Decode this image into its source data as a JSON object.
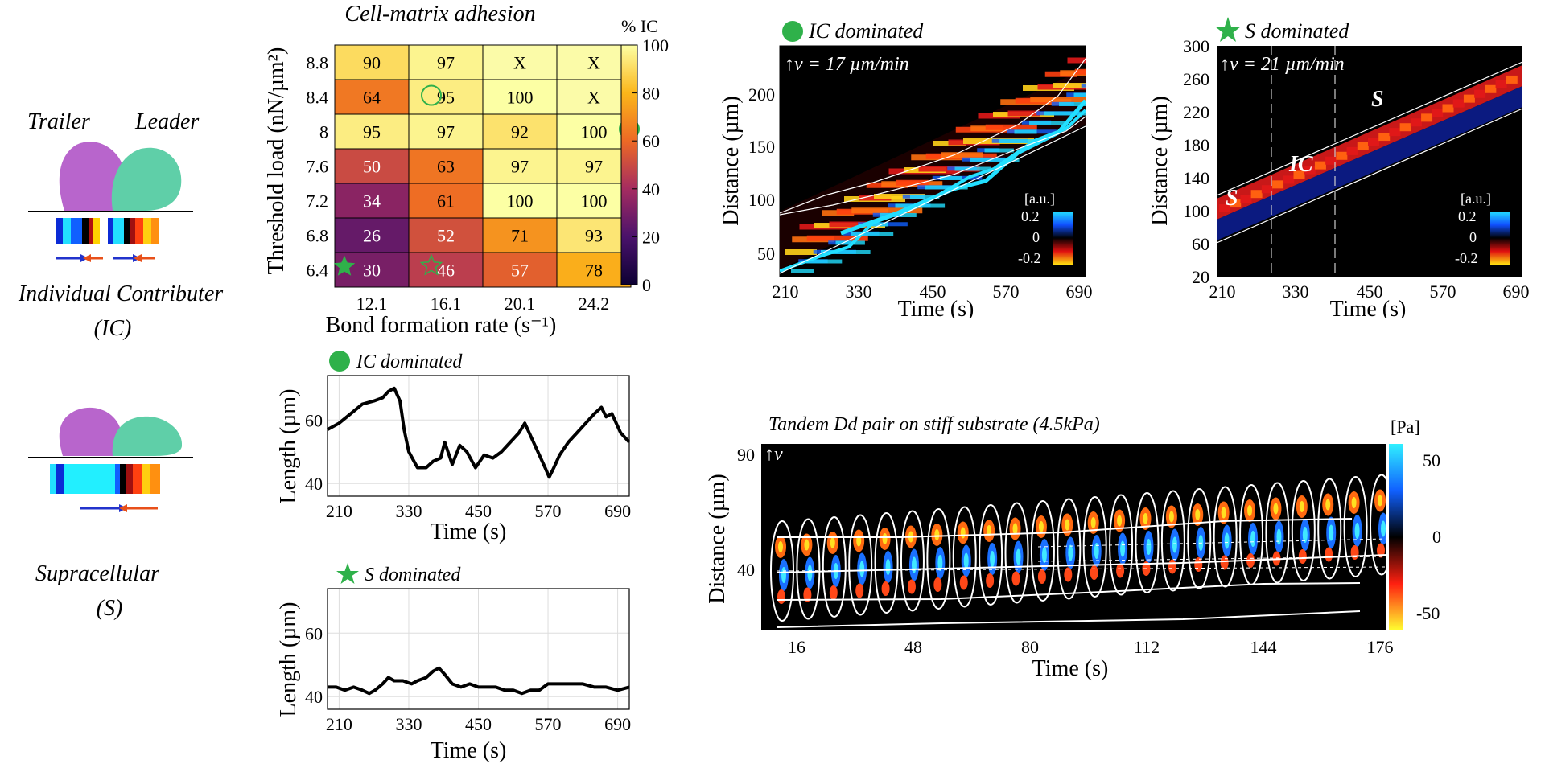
{
  "schematic": {
    "trailer": "Trailer",
    "leader": "Leader",
    "ic_title": "Individual Contributer",
    "ic_abbr": "(IC)",
    "s_title": "Supracellular",
    "s_abbr": "(S)"
  },
  "colors": {
    "trailer_cell": "#b865cc",
    "leader_cell": "#5fcfa8",
    "marker_green": "#2fb14a",
    "arrow_blue": "#2233cc",
    "arrow_red": "#e8501a"
  },
  "chart_data": [
    {
      "type": "heatmap",
      "title": "Cell-matrix adhesion",
      "xlabel": "Bond formation rate (s⁻¹)",
      "ylabel": "Threshold load (nN/µm²)",
      "colorbar_label": "% IC",
      "colorbar_ticks": [
        "0",
        "20",
        "40",
        "60",
        "80",
        "100"
      ],
      "x_categories": [
        "12.1",
        "16.1",
        "20.1",
        "24.2"
      ],
      "y_categories": [
        "8.8",
        "8.4",
        "8",
        "7.6",
        "7.2",
        "6.8",
        "6.4"
      ],
      "cells": [
        [
          "90",
          "97",
          "X",
          "X"
        ],
        [
          "64",
          "95",
          "100",
          "X"
        ],
        [
          "95",
          "97",
          "92",
          "100"
        ],
        [
          "50",
          "63",
          "97",
          "97"
        ],
        [
          "34",
          "61",
          "100",
          "100"
        ],
        [
          "26",
          "52",
          "71",
          "93"
        ],
        [
          "30",
          "46",
          "57",
          "78"
        ]
      ],
      "values": [
        [
          90,
          97,
          null,
          null
        ],
        [
          64,
          95,
          100,
          null
        ],
        [
          95,
          97,
          92,
          100
        ],
        [
          50,
          63,
          97,
          97
        ],
        [
          34,
          61,
          100,
          100
        ],
        [
          26,
          52,
          71,
          93
        ],
        [
          30,
          46,
          57,
          78
        ]
      ],
      "markers": [
        {
          "shape": "open-circle",
          "row": 1,
          "col": 1
        },
        {
          "shape": "filled-circle",
          "row": 2,
          "col": 3
        },
        {
          "shape": "filled-star",
          "row": 6,
          "col": 0
        },
        {
          "shape": "open-star",
          "row": 6,
          "col": 1
        }
      ]
    },
    {
      "type": "line",
      "title": "IC dominated",
      "xlabel": "Time (s)",
      "ylabel": "Length (µm)",
      "xlim": [
        190,
        710
      ],
      "ylim": [
        36,
        74
      ],
      "xticks": [
        "210",
        "330",
        "450",
        "570",
        "690"
      ],
      "yticks": [
        "40",
        "60"
      ],
      "grid": true,
      "x": [
        190,
        210,
        230,
        250,
        270,
        285,
        295,
        305,
        315,
        322,
        330,
        345,
        360,
        372,
        385,
        392,
        405,
        418,
        430,
        445,
        460,
        475,
        490,
        505,
        520,
        530,
        545,
        555,
        565,
        572,
        580,
        590,
        605,
        620,
        635,
        650,
        662,
        670,
        680,
        695,
        710
      ],
      "y": [
        57,
        59,
        62,
        65,
        66,
        67,
        69,
        70,
        66,
        57,
        50,
        45,
        45,
        47,
        48,
        53,
        46,
        52,
        50,
        45,
        49,
        48,
        50,
        53,
        56,
        59,
        53,
        49,
        45,
        42,
        45,
        49,
        53,
        56,
        59,
        62,
        64,
        61,
        62,
        56,
        53
      ]
    },
    {
      "type": "line",
      "title": "S dominated",
      "xlabel": "Time (s)",
      "ylabel": "Length (µm)",
      "xlim": [
        190,
        710
      ],
      "ylim": [
        36,
        74
      ],
      "xticks": [
        "210",
        "330",
        "450",
        "570",
        "690"
      ],
      "yticks": [
        "40",
        "60"
      ],
      "grid": true,
      "x": [
        190,
        205,
        220,
        235,
        250,
        262,
        272,
        285,
        295,
        305,
        320,
        335,
        345,
        360,
        372,
        382,
        392,
        405,
        420,
        435,
        450,
        465,
        480,
        495,
        510,
        525,
        540,
        555,
        570,
        590,
        610,
        630,
        650,
        670,
        690,
        710
      ],
      "y": [
        43,
        43,
        42,
        43,
        42,
        41,
        42,
        44,
        46,
        45,
        45,
        44,
        45,
        46,
        48,
        49,
        47,
        44,
        43,
        44,
        43,
        43,
        43,
        42,
        42,
        41,
        42,
        42,
        44,
        44,
        44,
        44,
        43,
        43,
        42,
        43
      ]
    },
    {
      "type": "heatmap",
      "title": "IC dominated",
      "annotation": "↑v = 17 µm/min",
      "xlabel": "Time (s)",
      "ylabel": "Distance (µm)",
      "xticks": [
        "210",
        "330",
        "450",
        "570",
        "690"
      ],
      "yticks": [
        "50",
        "100",
        "150",
        "200"
      ],
      "xlim": [
        200,
        710
      ],
      "ylim": [
        25,
        225
      ],
      "colorbar_label": "[a.u.]",
      "colorbar_ticks": [
        "0.2",
        "0",
        "-0.2"
      ],
      "track_lower_start": [
        200,
        30
      ],
      "track_lower_end": [
        700,
        175
      ],
      "track_upper_start": [
        200,
        85
      ],
      "track_upper_end": [
        700,
        220
      ]
    },
    {
      "type": "heatmap",
      "title": "S dominated",
      "annotation": "↑v = 21 µm/min",
      "xlabel": "Time (s)",
      "ylabel": "Distance (µm)",
      "xticks": [
        "210",
        "330",
        "450",
        "570",
        "690"
      ],
      "yticks": [
        "20",
        "60",
        "100",
        "140",
        "180",
        "220",
        "260",
        "300"
      ],
      "xlim": [
        200,
        710
      ],
      "ylim": [
        20,
        300
      ],
      "colorbar_label": "[a.u.]",
      "colorbar_ticks": [
        "0.2",
        "0",
        "-0.2"
      ],
      "phase_labels": [
        "S",
        "IC",
        "S"
      ],
      "phase_boundaries": [
        300,
        390
      ]
    },
    {
      "type": "heatmap",
      "title": "Tandem Dd pair on stiff substrate (4.5kPa)",
      "annotation": "↑v",
      "xlabel": "Time (s)",
      "ylabel": "Distance (µm)",
      "xticks": [
        "16",
        "48",
        "80",
        "112",
        "144",
        "176"
      ],
      "yticks": [
        "40",
        "90"
      ],
      "colorbar_label": "[Pa]",
      "colorbar_ticks": [
        "50",
        "0",
        "-50"
      ],
      "frames": 24
    }
  ]
}
